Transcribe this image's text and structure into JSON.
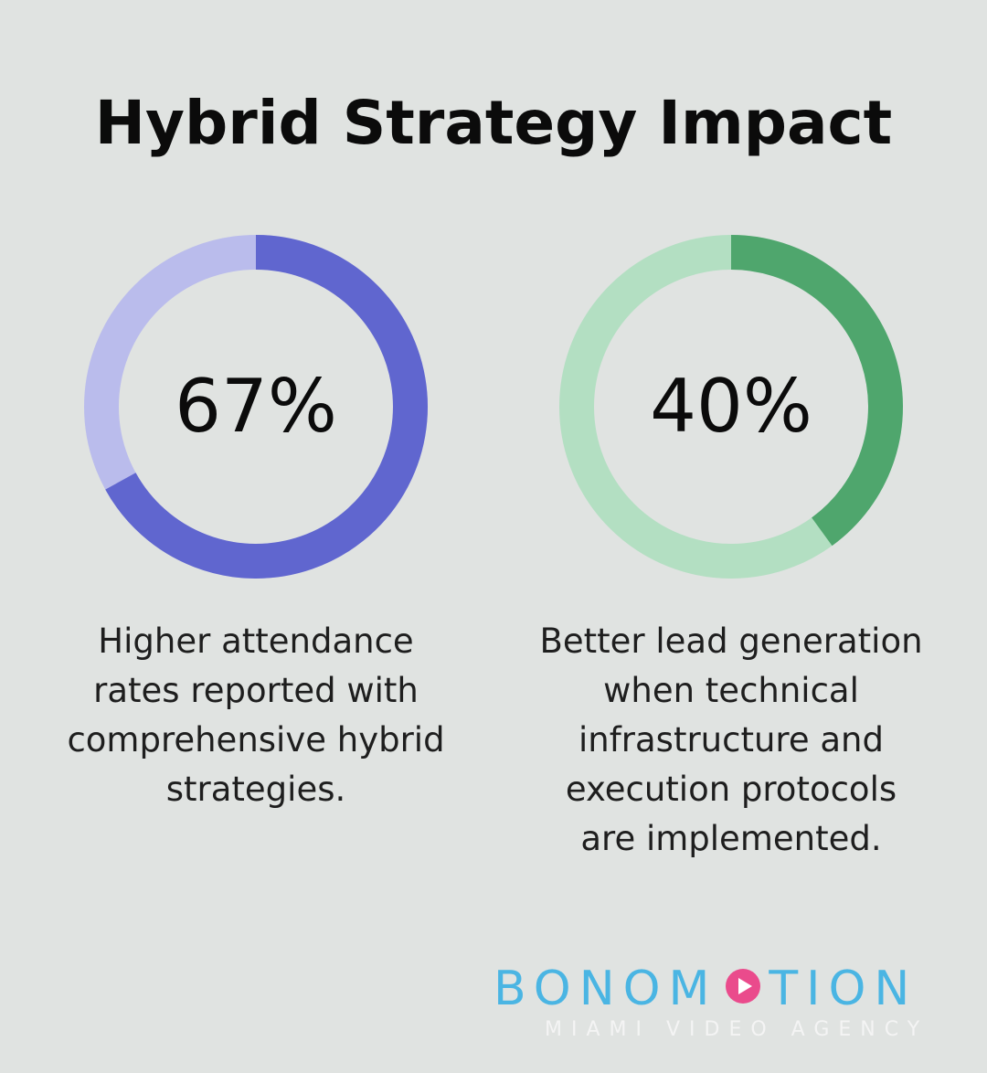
{
  "title": "Hybrid Strategy Impact",
  "chart_data": [
    {
      "type": "pie",
      "variant": "donut",
      "value": 67,
      "center_label": "67%",
      "description": "Higher attendance rates reported with comprehensive hybrid strategies.",
      "colors": {
        "fill": "#6066cf",
        "track": "#babcec"
      }
    },
    {
      "type": "pie",
      "variant": "donut",
      "value": 40,
      "center_label": "40%",
      "description": "Better lead generation when technical infrastructure and execution protocols are implemented.",
      "colors": {
        "fill": "#4fa66d",
        "track": "#b3dfc2"
      }
    }
  ],
  "logo": {
    "part1": "BONOM",
    "part2": "TION",
    "tagline": "MIAMI VIDEO AGENCY",
    "colors": {
      "text": "#4ab5e3",
      "play": "#ea4b8c",
      "tagline": "#f4f4f4"
    }
  }
}
